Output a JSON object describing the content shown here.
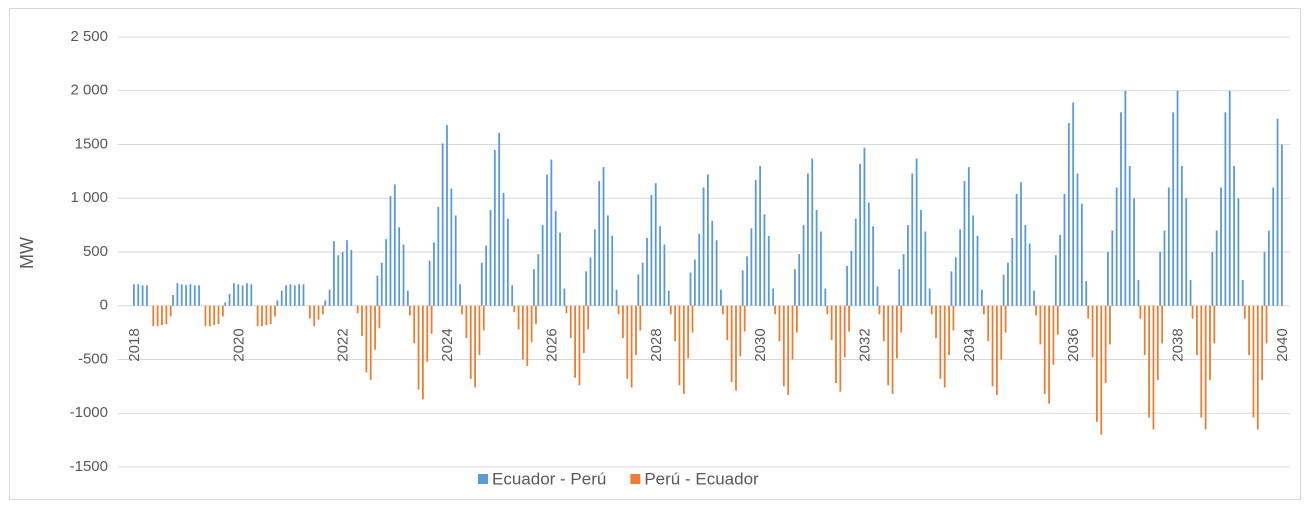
{
  "chart_data": {
    "type": "bar",
    "y_label": "MW",
    "ylim": [
      -1500,
      2500
    ],
    "yticks": [
      -1500,
      -1000,
      -500,
      0,
      500,
      {
        "value": 1000,
        "label": "1 000"
      },
      1500,
      {
        "value": 2000,
        "label": "2 000"
      },
      {
        "value": 2500,
        "label": "2 500"
      }
    ],
    "grid": true,
    "legend": "bottom",
    "categories": [
      "2018",
      null,
      null,
      null,
      null,
      null,
      null,
      null,
      null,
      null,
      null,
      null,
      null,
      null,
      null,
      null,
      null,
      null,
      null,
      null,
      null,
      null,
      null,
      null,
      "2020",
      null,
      null,
      null,
      null,
      null,
      null,
      null,
      null,
      null,
      null,
      null,
      null,
      null,
      null,
      null,
      null,
      null,
      null,
      null,
      null,
      null,
      null,
      null,
      "2022",
      null,
      null,
      null,
      null,
      null,
      null,
      null,
      null,
      null,
      null,
      null,
      null,
      null,
      null,
      null,
      null,
      null,
      null,
      null,
      null,
      null,
      null,
      null,
      "2024",
      null,
      null,
      null,
      null,
      null,
      null,
      null,
      null,
      null,
      null,
      null,
      null,
      null,
      null,
      null,
      null,
      null,
      null,
      null,
      null,
      null,
      null,
      null,
      "2026",
      null,
      null,
      null,
      null,
      null,
      null,
      null,
      null,
      null,
      null,
      null,
      null,
      null,
      null,
      null,
      null,
      null,
      null,
      null,
      null,
      null,
      null,
      null,
      "2028",
      null,
      null,
      null,
      null,
      null,
      null,
      null,
      null,
      null,
      null,
      null,
      null,
      null,
      null,
      null,
      null,
      null,
      null,
      null,
      null,
      null,
      null,
      null,
      "2030",
      null,
      null,
      null,
      null,
      null,
      null,
      null,
      null,
      null,
      null,
      null,
      null,
      null,
      null,
      null,
      null,
      null,
      null,
      null,
      null,
      null,
      null,
      null,
      "2032",
      null,
      null,
      null,
      null,
      null,
      null,
      null,
      null,
      null,
      null,
      null,
      null,
      null,
      null,
      null,
      null,
      null,
      null,
      null,
      null,
      null,
      null,
      null,
      "2034",
      null,
      null,
      null,
      null,
      null,
      null,
      null,
      null,
      null,
      null,
      null,
      null,
      null,
      null,
      null,
      null,
      null,
      null,
      null,
      null,
      null,
      null,
      null,
      "2036",
      null,
      null,
      null,
      null,
      null,
      null,
      null,
      null,
      null,
      null,
      null,
      null,
      null,
      null,
      null,
      null,
      null,
      null,
      null,
      null,
      null,
      null,
      null,
      "2038",
      null,
      null,
      null,
      null,
      null,
      null,
      null,
      null,
      null,
      null,
      null,
      null,
      null,
      null,
      null,
      null,
      null,
      null,
      null,
      null,
      null,
      null,
      null,
      "2040"
    ],
    "series": [
      {
        "name": "Ecuador - Perú",
        "color": "#5b9bd5",
        "values": [
          200,
          200,
          190,
          190,
          0,
          0,
          0,
          0,
          0,
          100,
          210,
          200,
          190,
          200,
          190,
          190,
          0,
          0,
          0,
          0,
          0,
          30,
          110,
          210,
          200,
          190,
          210,
          200,
          0,
          0,
          0,
          0,
          0,
          50,
          140,
          190,
          200,
          190,
          200,
          200,
          0,
          0,
          0,
          0,
          50,
          150,
          600,
          470,
          500,
          610,
          520,
          0,
          0,
          0,
          0,
          0,
          280,
          400,
          620,
          1020,
          1130,
          730,
          570,
          140,
          0,
          0,
          0,
          0,
          420,
          590,
          920,
          1510,
          1680,
          1090,
          840,
          200,
          0,
          0,
          0,
          0,
          400,
          560,
          890,
          1450,
          1610,
          1050,
          810,
          190,
          0,
          0,
          0,
          0,
          340,
          480,
          750,
          1220,
          1360,
          880,
          680,
          160,
          0,
          0,
          0,
          0,
          320,
          450,
          710,
          1160,
          1290,
          840,
          650,
          150,
          0,
          0,
          0,
          0,
          290,
          400,
          630,
          1030,
          1140,
          740,
          570,
          140,
          0,
          0,
          0,
          0,
          310,
          430,
          670,
          1100,
          1220,
          790,
          610,
          150,
          0,
          0,
          0,
          0,
          330,
          460,
          720,
          1170,
          1300,
          850,
          650,
          160,
          0,
          0,
          0,
          0,
          340,
          480,
          750,
          1230,
          1370,
          890,
          690,
          160,
          0,
          0,
          0,
          0,
          370,
          510,
          810,
          1320,
          1470,
          960,
          740,
          180,
          0,
          0,
          0,
          0,
          340,
          480,
          750,
          1230,
          1370,
          890,
          690,
          160,
          0,
          0,
          0,
          0,
          320,
          450,
          710,
          1160,
          1290,
          840,
          650,
          150,
          0,
          0,
          0,
          0,
          290,
          400,
          630,
          1040,
          1150,
          750,
          580,
          140,
          0,
          0,
          0,
          0,
          470,
          660,
          1040,
          1700,
          1890,
          1230,
          950,
          230,
          0,
          0,
          0,
          0,
          500,
          700,
          1100,
          1800,
          2000,
          1300,
          1000,
          240,
          0,
          0,
          0,
          0,
          500,
          700,
          1100,
          1800,
          2000,
          1300,
          1000,
          240,
          0,
          0,
          0,
          0,
          500,
          700,
          1100,
          1800,
          2000,
          1300,
          1000,
          240,
          0,
          0,
          0,
          0,
          500,
          700,
          1100,
          1740,
          1500
        ]
      },
      {
        "name": "Perú - Ecuador",
        "color": "#ed7d31",
        "values": [
          0,
          0,
          0,
          0,
          -190,
          -190,
          -180,
          -170,
          -100,
          0,
          0,
          0,
          0,
          0,
          0,
          0,
          -190,
          -190,
          -180,
          -170,
          -100,
          0,
          0,
          0,
          0,
          0,
          0,
          0,
          -190,
          -190,
          -180,
          -170,
          -100,
          0,
          0,
          0,
          0,
          0,
          0,
          0,
          -120,
          -190,
          -130,
          -80,
          0,
          0,
          0,
          0,
          0,
          0,
          0,
          -70,
          -280,
          -620,
          -690,
          -410,
          -210,
          0,
          0,
          0,
          0,
          0,
          0,
          -90,
          -350,
          -780,
          -870,
          -520,
          -260,
          0,
          0,
          0,
          0,
          0,
          0,
          -80,
          -300,
          -680,
          -760,
          -460,
          -230,
          0,
          0,
          0,
          0,
          0,
          0,
          -60,
          -220,
          -500,
          -560,
          -340,
          -170,
          0,
          0,
          0,
          0,
          0,
          0,
          -70,
          -300,
          -670,
          -740,
          -440,
          -220,
          0,
          0,
          0,
          0,
          0,
          0,
          -80,
          -300,
          -680,
          -760,
          -460,
          -230,
          0,
          0,
          0,
          0,
          0,
          0,
          -80,
          -330,
          -740,
          -820,
          -490,
          -250,
          0,
          0,
          0,
          0,
          0,
          0,
          -80,
          -320,
          -710,
          -790,
          -470,
          -240,
          0,
          0,
          0,
          0,
          0,
          0,
          -80,
          -330,
          -750,
          -830,
          -500,
          -250,
          0,
          0,
          0,
          0,
          0,
          0,
          -80,
          -320,
          -720,
          -800,
          -480,
          -240,
          0,
          0,
          0,
          0,
          0,
          0,
          -80,
          -330,
          -740,
          -820,
          -490,
          -250,
          0,
          0,
          0,
          0,
          0,
          0,
          -80,
          -300,
          -680,
          -760,
          -460,
          -230,
          0,
          0,
          0,
          0,
          0,
          0,
          -80,
          -330,
          -750,
          -830,
          -500,
          -250,
          0,
          0,
          0,
          0,
          0,
          0,
          -90,
          -360,
          -820,
          -910,
          -550,
          -270,
          0,
          0,
          0,
          0,
          0,
          0,
          -120,
          -480,
          -1080,
          -1200,
          -720,
          -360,
          0,
          0,
          0,
          0,
          0,
          0,
          -120,
          -460,
          -1040,
          -1150,
          -690,
          -350,
          0,
          0,
          0,
          0,
          0,
          0,
          -120,
          -460,
          -1040,
          -1150,
          -690,
          -350,
          0,
          0,
          0,
          0,
          0,
          0,
          -120,
          -460,
          -1040,
          -1150,
          -690,
          -350,
          0,
          0,
          0,
          0
        ]
      }
    ]
  }
}
